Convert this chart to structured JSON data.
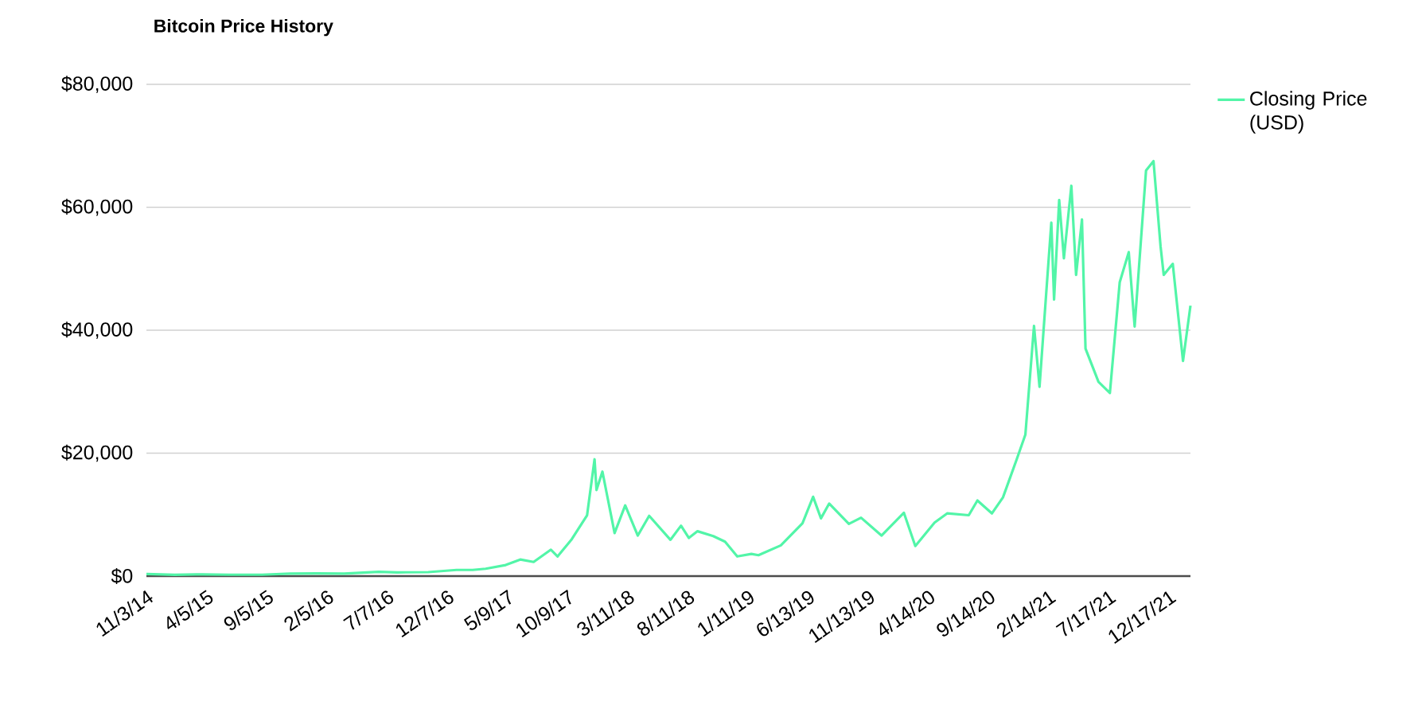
{
  "chart_data": {
    "type": "line",
    "title": "Bitcoin Price History",
    "x": [
      "2014-11-03",
      "2015-01-14",
      "2015-03-10",
      "2015-06-01",
      "2015-08-24",
      "2015-11-04",
      "2016-01-10",
      "2016-03-20",
      "2016-06-16",
      "2016-08-02",
      "2016-10-20",
      "2016-12-31",
      "2017-02-10",
      "2017-03-15",
      "2017-05-05",
      "2017-06-11",
      "2017-07-15",
      "2017-08-28",
      "2017-09-14",
      "2017-10-20",
      "2017-11-28",
      "2017-12-17",
      "2017-12-22",
      "2018-01-06",
      "2018-02-06",
      "2018-03-05",
      "2018-04-06",
      "2018-05-05",
      "2018-06-28",
      "2018-07-25",
      "2018-08-14",
      "2018-09-05",
      "2018-10-15",
      "2018-11-14",
      "2018-12-15",
      "2019-01-20",
      "2019-02-07",
      "2019-04-05",
      "2019-05-30",
      "2019-06-26",
      "2019-07-16",
      "2019-08-06",
      "2019-09-25",
      "2019-10-26",
      "2019-12-17",
      "2020-02-12",
      "2020-03-12",
      "2020-04-30",
      "2020-06-01",
      "2020-07-26",
      "2020-08-17",
      "2020-09-23",
      "2020-10-21",
      "2020-11-25",
      "2020-12-17",
      "2021-01-08",
      "2021-01-22",
      "2021-02-08",
      "2021-02-21",
      "2021-02-28",
      "2021-03-13",
      "2021-03-25",
      "2021-04-13",
      "2021-04-25",
      "2021-05-10",
      "2021-05-19",
      "2021-06-21",
      "2021-07-20",
      "2021-08-14",
      "2021-09-06",
      "2021-09-21",
      "2021-10-20",
      "2021-11-08",
      "2021-11-26",
      "2021-12-04",
      "2021-12-27",
      "2022-01-22",
      "2022-02-10"
    ],
    "series": [
      {
        "name": "Closing Price (USD)",
        "color": "#52f5a8",
        "values": [
          330,
          220,
          280,
          230,
          230,
          400,
          430,
          410,
          700,
          600,
          650,
          1000,
          1000,
          1200,
          1800,
          2700,
          2300,
          4300,
          3200,
          6000,
          9900,
          19000,
          14000,
          17000,
          7000,
          11500,
          6600,
          9800,
          5900,
          8200,
          6200,
          7300,
          6500,
          5600,
          3200,
          3600,
          3400,
          5000,
          8600,
          12900,
          9400,
          11800,
          8500,
          9500,
          6600,
          10300,
          4900,
          8700,
          10200,
          9900,
          12300,
          10200,
          12800,
          19000,
          23000,
          40700,
          30800,
          46000,
          57500,
          45000,
          61200,
          51700,
          63500,
          49000,
          58000,
          37000,
          31600,
          29800,
          47800,
          52700,
          40600,
          66000,
          67500,
          53600,
          49000,
          50800,
          35000,
          44000
        ]
      }
    ],
    "xlim": [
      "2014-11-03",
      "2022-02-10"
    ],
    "xticks": [
      {
        "value": "2014-11-03",
        "label": "11/3/14"
      },
      {
        "value": "2015-04-05",
        "label": "4/5/15"
      },
      {
        "value": "2015-09-05",
        "label": "9/5/15"
      },
      {
        "value": "2016-02-05",
        "label": "2/5/16"
      },
      {
        "value": "2016-07-07",
        "label": "7/7/16"
      },
      {
        "value": "2016-12-07",
        "label": "12/7/16"
      },
      {
        "value": "2017-05-09",
        "label": "5/9/17"
      },
      {
        "value": "2017-10-09",
        "label": "10/9/17"
      },
      {
        "value": "2018-03-11",
        "label": "3/11/18"
      },
      {
        "value": "2018-08-11",
        "label": "8/11/18"
      },
      {
        "value": "2019-01-11",
        "label": "1/11/19"
      },
      {
        "value": "2019-06-13",
        "label": "6/13/19"
      },
      {
        "value": "2019-11-13",
        "label": "11/13/19"
      },
      {
        "value": "2020-04-14",
        "label": "4/14/20"
      },
      {
        "value": "2020-09-14",
        "label": "9/14/20"
      },
      {
        "value": "2021-02-14",
        "label": "2/14/21"
      },
      {
        "value": "2021-07-17",
        "label": "7/17/21"
      },
      {
        "value": "2021-12-17",
        "label": "12/17/21"
      }
    ],
    "ylim": [
      0,
      80000
    ],
    "yticks": [
      {
        "value": 0,
        "label": "$0"
      },
      {
        "value": 20000,
        "label": "$20,000"
      },
      {
        "value": 40000,
        "label": "$40,000"
      },
      {
        "value": 60000,
        "label": "$60,000"
      },
      {
        "value": 80000,
        "label": "$80,000"
      }
    ],
    "grid": "y",
    "legend": "top right",
    "marker": "none",
    "line_style": "solid"
  }
}
